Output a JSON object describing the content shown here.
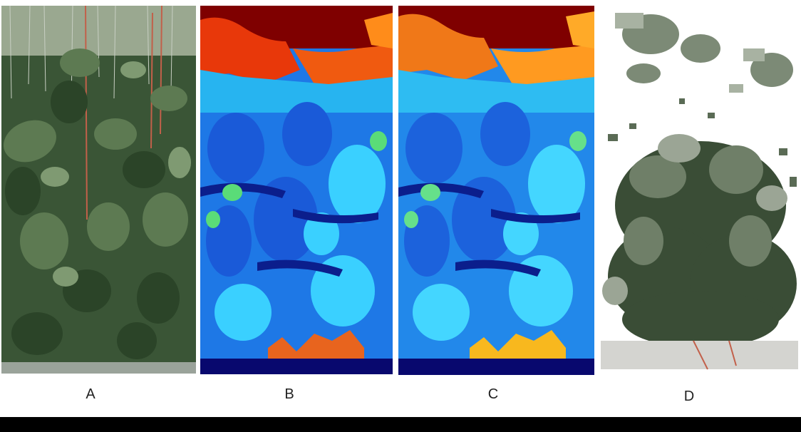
{
  "panels": [
    {
      "id": "A",
      "label": "A",
      "kind": "rgb-photo"
    },
    {
      "id": "B",
      "label": "B",
      "kind": "depth-map"
    },
    {
      "id": "C",
      "label": "C",
      "kind": "depth-map"
    },
    {
      "id": "D",
      "label": "D",
      "kind": "point-cloud"
    }
  ],
  "colors": {
    "leaf_dark": "#2f4a2c",
    "leaf_mid": "#4f6b45",
    "leaf_light": "#8fa089",
    "depth_far": "#7f0000",
    "depth_hot": "#ff4500",
    "depth_near": "#1e64e6",
    "depth_cyan": "#2fc8ff",
    "depth_floor": "#0a0a78",
    "band": "#000000"
  }
}
